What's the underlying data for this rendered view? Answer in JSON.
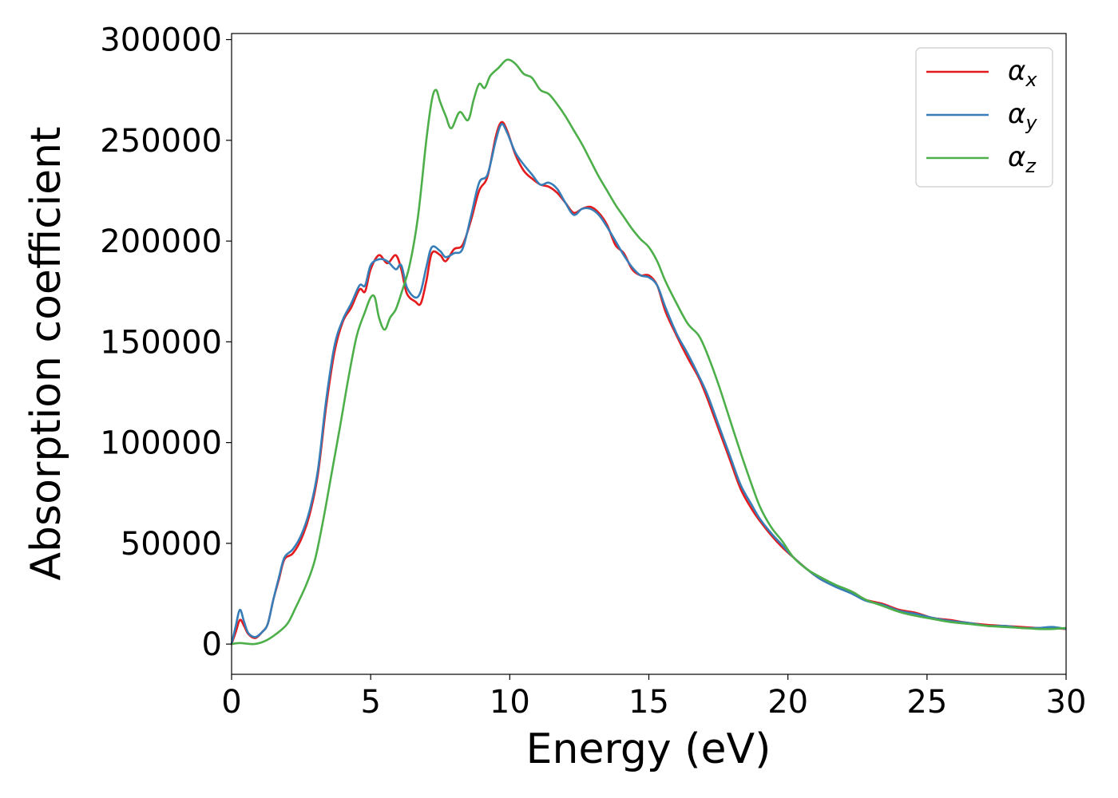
{
  "chart_data": {
    "type": "line",
    "xlabel": "Energy (eV)",
    "ylabel": "Absorption coefficient",
    "xlim": [
      0,
      30
    ],
    "ylim": [
      -15000,
      303000
    ],
    "xticks": [
      0,
      5,
      10,
      15,
      20,
      25,
      30
    ],
    "yticks": [
      0,
      50000,
      100000,
      150000,
      200000,
      250000,
      300000
    ],
    "grid": false,
    "legend_position": "top-right",
    "series": [
      {
        "name": "α",
        "subscript": "x",
        "color": "#e41a1c",
        "points": [
          [
            0,
            0
          ],
          [
            0.15,
            6000
          ],
          [
            0.3,
            12000
          ],
          [
            0.45,
            9000
          ],
          [
            0.6,
            5000
          ],
          [
            0.85,
            3000
          ],
          [
            1.1,
            6000
          ],
          [
            1.3,
            10000
          ],
          [
            1.5,
            22000
          ],
          [
            1.7,
            32000
          ],
          [
            1.9,
            42000
          ],
          [
            2.2,
            45000
          ],
          [
            2.5,
            52000
          ],
          [
            2.8,
            64000
          ],
          [
            3.1,
            84000
          ],
          [
            3.4,
            118000
          ],
          [
            3.7,
            145000
          ],
          [
            4.0,
            160000
          ],
          [
            4.3,
            167000
          ],
          [
            4.6,
            176000
          ],
          [
            4.8,
            175000
          ],
          [
            5.0,
            186000
          ],
          [
            5.3,
            193000
          ],
          [
            5.6,
            189000
          ],
          [
            5.9,
            193000
          ],
          [
            6.1,
            186000
          ],
          [
            6.3,
            174000
          ],
          [
            6.6,
            170000
          ],
          [
            6.8,
            169000
          ],
          [
            7.0,
            180000
          ],
          [
            7.2,
            194000
          ],
          [
            7.5,
            193000
          ],
          [
            7.7,
            190000
          ],
          [
            8.0,
            196000
          ],
          [
            8.3,
            198000
          ],
          [
            8.6,
            210000
          ],
          [
            8.9,
            225000
          ],
          [
            9.2,
            232000
          ],
          [
            9.5,
            252000
          ],
          [
            9.7,
            259000
          ],
          [
            9.9,
            255000
          ],
          [
            10.2,
            243000
          ],
          [
            10.5,
            235000
          ],
          [
            10.8,
            231000
          ],
          [
            11.1,
            228000
          ],
          [
            11.4,
            227000
          ],
          [
            11.7,
            224000
          ],
          [
            12.0,
            219000
          ],
          [
            12.3,
            214000
          ],
          [
            12.6,
            216000
          ],
          [
            12.9,
            217000
          ],
          [
            13.2,
            214000
          ],
          [
            13.5,
            208000
          ],
          [
            13.8,
            198000
          ],
          [
            14.1,
            194000
          ],
          [
            14.4,
            186000
          ],
          [
            14.7,
            183000
          ],
          [
            15.0,
            183000
          ],
          [
            15.3,
            178000
          ],
          [
            15.6,
            165000
          ],
          [
            16.0,
            153000
          ],
          [
            16.4,
            142000
          ],
          [
            16.8,
            132000
          ],
          [
            17.1,
            122000
          ],
          [
            17.5,
            107000
          ],
          [
            17.9,
            92000
          ],
          [
            18.3,
            77000
          ],
          [
            18.7,
            67000
          ],
          [
            19.0,
            61000
          ],
          [
            19.4,
            54000
          ],
          [
            19.8,
            48000
          ],
          [
            20.2,
            43000
          ],
          [
            20.7,
            37000
          ],
          [
            21.2,
            32000
          ],
          [
            21.7,
            29000
          ],
          [
            22.3,
            26000
          ],
          [
            22.8,
            22000
          ],
          [
            23.4,
            20000
          ],
          [
            24.0,
            17000
          ],
          [
            24.6,
            15500
          ],
          [
            25.2,
            13000
          ],
          [
            25.8,
            12000
          ],
          [
            26.5,
            10500
          ],
          [
            27.2,
            9500
          ],
          [
            27.8,
            9000
          ],
          [
            28.4,
            8500
          ],
          [
            29.0,
            8000
          ],
          [
            29.5,
            8000
          ],
          [
            30.0,
            7500
          ]
        ]
      },
      {
        "name": "α",
        "subscript": "y",
        "color": "#377eb8",
        "points": [
          [
            0,
            0
          ],
          [
            0.15,
            9000
          ],
          [
            0.3,
            17000
          ],
          [
            0.45,
            11000
          ],
          [
            0.6,
            5500
          ],
          [
            0.85,
            3500
          ],
          [
            1.1,
            6000
          ],
          [
            1.3,
            10000
          ],
          [
            1.5,
            22000
          ],
          [
            1.7,
            33000
          ],
          [
            1.9,
            43000
          ],
          [
            2.2,
            47000
          ],
          [
            2.5,
            54000
          ],
          [
            2.8,
            66000
          ],
          [
            3.1,
            86000
          ],
          [
            3.4,
            121000
          ],
          [
            3.7,
            148000
          ],
          [
            4.0,
            161000
          ],
          [
            4.3,
            169000
          ],
          [
            4.6,
            178000
          ],
          [
            4.8,
            178000
          ],
          [
            5.0,
            188000
          ],
          [
            5.3,
            191000
          ],
          [
            5.6,
            190000
          ],
          [
            5.9,
            186000
          ],
          [
            6.1,
            188000
          ],
          [
            6.3,
            177000
          ],
          [
            6.6,
            172000
          ],
          [
            6.8,
            175000
          ],
          [
            7.0,
            187000
          ],
          [
            7.2,
            197000
          ],
          [
            7.5,
            195000
          ],
          [
            7.7,
            192000
          ],
          [
            8.0,
            194000
          ],
          [
            8.3,
            196000
          ],
          [
            8.6,
            212000
          ],
          [
            8.9,
            229000
          ],
          [
            9.2,
            233000
          ],
          [
            9.5,
            250000
          ],
          [
            9.7,
            258000
          ],
          [
            9.9,
            254000
          ],
          [
            10.2,
            244000
          ],
          [
            10.5,
            238000
          ],
          [
            10.8,
            233000
          ],
          [
            11.1,
            228000
          ],
          [
            11.4,
            229000
          ],
          [
            11.7,
            226000
          ],
          [
            12.0,
            219000
          ],
          [
            12.3,
            213000
          ],
          [
            12.6,
            216000
          ],
          [
            12.9,
            216000
          ],
          [
            13.2,
            213000
          ],
          [
            13.5,
            207000
          ],
          [
            13.8,
            200000
          ],
          [
            14.1,
            193000
          ],
          [
            14.4,
            187000
          ],
          [
            14.7,
            183000
          ],
          [
            15.0,
            182000
          ],
          [
            15.3,
            178000
          ],
          [
            15.6,
            167000
          ],
          [
            16.0,
            154000
          ],
          [
            16.4,
            144000
          ],
          [
            16.8,
            133000
          ],
          [
            17.1,
            124000
          ],
          [
            17.5,
            109000
          ],
          [
            17.9,
            94000
          ],
          [
            18.3,
            79000
          ],
          [
            18.7,
            69000
          ],
          [
            19.0,
            62000
          ],
          [
            19.4,
            55000
          ],
          [
            19.8,
            49000
          ],
          [
            20.2,
            43000
          ],
          [
            20.7,
            37000
          ],
          [
            21.2,
            32000
          ],
          [
            21.7,
            28500
          ],
          [
            22.3,
            25000
          ],
          [
            22.8,
            21500
          ],
          [
            23.4,
            19500
          ],
          [
            24.0,
            16500
          ],
          [
            24.6,
            15000
          ],
          [
            25.2,
            13000
          ],
          [
            25.8,
            11500
          ],
          [
            26.5,
            10500
          ],
          [
            27.2,
            9000
          ],
          [
            27.8,
            9000
          ],
          [
            28.4,
            8000
          ],
          [
            29.0,
            8000
          ],
          [
            29.5,
            8500
          ],
          [
            30.0,
            7500
          ]
        ]
      },
      {
        "name": "α",
        "subscript": "z",
        "color": "#4daf4a",
        "points": [
          [
            0,
            0
          ],
          [
            0.3,
            500
          ],
          [
            0.8,
            0
          ],
          [
            1.2,
            1500
          ],
          [
            1.6,
            5000
          ],
          [
            2.0,
            10000
          ],
          [
            2.3,
            18000
          ],
          [
            2.7,
            30000
          ],
          [
            3.0,
            42000
          ],
          [
            3.3,
            62000
          ],
          [
            3.6,
            85000
          ],
          [
            3.9,
            108000
          ],
          [
            4.2,
            132000
          ],
          [
            4.5,
            153000
          ],
          [
            4.8,
            165000
          ],
          [
            5.0,
            172000
          ],
          [
            5.15,
            172000
          ],
          [
            5.3,
            162000
          ],
          [
            5.5,
            156000
          ],
          [
            5.7,
            162000
          ],
          [
            5.9,
            166000
          ],
          [
            6.1,
            174000
          ],
          [
            6.4,
            188000
          ],
          [
            6.7,
            212000
          ],
          [
            7.0,
            250000
          ],
          [
            7.2,
            270000
          ],
          [
            7.35,
            275000
          ],
          [
            7.5,
            269000
          ],
          [
            7.7,
            262000
          ],
          [
            7.9,
            256000
          ],
          [
            8.2,
            264000
          ],
          [
            8.5,
            260000
          ],
          [
            8.7,
            270000
          ],
          [
            8.9,
            278000
          ],
          [
            9.1,
            276000
          ],
          [
            9.3,
            282000
          ],
          [
            9.6,
            286000
          ],
          [
            9.9,
            290000
          ],
          [
            10.2,
            288000
          ],
          [
            10.5,
            283000
          ],
          [
            10.8,
            281000
          ],
          [
            11.1,
            275000
          ],
          [
            11.4,
            273000
          ],
          [
            11.7,
            268000
          ],
          [
            12.0,
            262000
          ],
          [
            12.3,
            255000
          ],
          [
            12.6,
            248000
          ],
          [
            12.9,
            240000
          ],
          [
            13.2,
            232000
          ],
          [
            13.5,
            225000
          ],
          [
            13.8,
            218000
          ],
          [
            14.1,
            212000
          ],
          [
            14.4,
            206000
          ],
          [
            14.7,
            201000
          ],
          [
            15.0,
            197000
          ],
          [
            15.3,
            190000
          ],
          [
            15.6,
            180000
          ],
          [
            16.0,
            169000
          ],
          [
            16.4,
            159000
          ],
          [
            16.8,
            153000
          ],
          [
            17.1,
            144000
          ],
          [
            17.5,
            129000
          ],
          [
            17.9,
            112000
          ],
          [
            18.3,
            95000
          ],
          [
            18.7,
            79000
          ],
          [
            19.0,
            68000
          ],
          [
            19.4,
            58000
          ],
          [
            19.8,
            51000
          ],
          [
            20.2,
            43000
          ],
          [
            20.7,
            37000
          ],
          [
            21.2,
            33000
          ],
          [
            21.7,
            29500
          ],
          [
            22.3,
            26000
          ],
          [
            22.8,
            22000
          ],
          [
            23.4,
            19000
          ],
          [
            24.0,
            16000
          ],
          [
            24.6,
            14000
          ],
          [
            25.2,
            12500
          ],
          [
            25.8,
            11000
          ],
          [
            26.5,
            10000
          ],
          [
            27.2,
            9000
          ],
          [
            27.8,
            8500
          ],
          [
            28.4,
            8000
          ],
          [
            29.0,
            7500
          ],
          [
            29.5,
            7500
          ],
          [
            30.0,
            8000
          ]
        ]
      }
    ]
  }
}
